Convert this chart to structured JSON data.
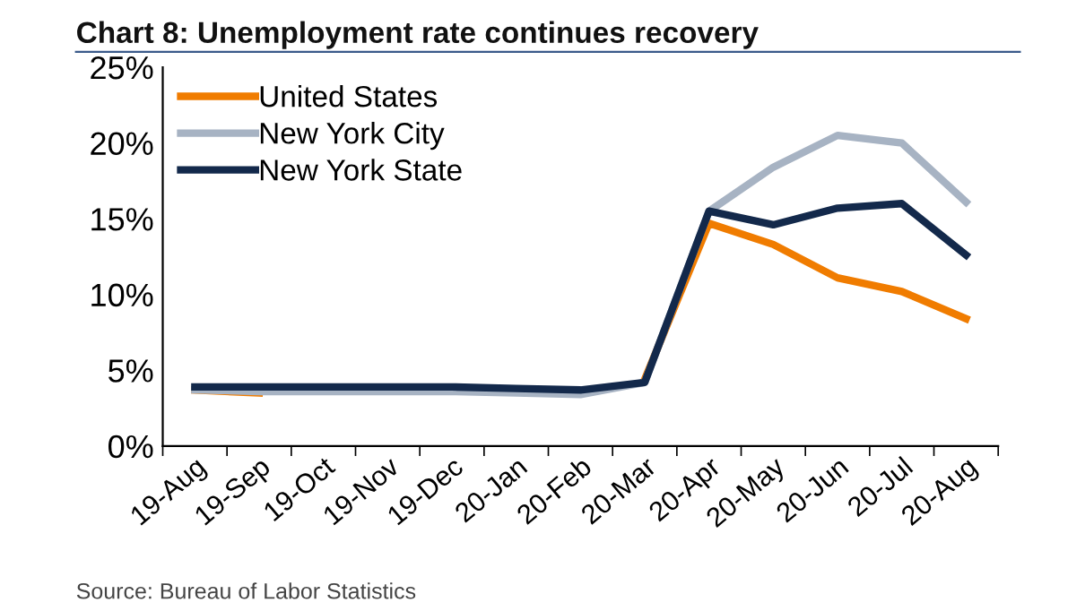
{
  "chart_data": {
    "type": "line",
    "title": "Chart 8: Unemployment rate continues recovery",
    "categories": [
      "19-Aug",
      "19-Sep",
      "19-Oct",
      "19-Nov",
      "19-Dec",
      "20-Jan",
      "20-Feb",
      "20-Mar",
      "20-Apr",
      "20-May",
      "20-Jun",
      "20-Jul",
      "20-Aug"
    ],
    "series": [
      {
        "name": "United States",
        "color": "#f07c00",
        "values": [
          3.7,
          3.5,
          null,
          null,
          null,
          null,
          null,
          4.4,
          14.7,
          13.3,
          11.1,
          10.2,
          8.4
        ]
      },
      {
        "name": "New York City",
        "color": "#a7b3c3",
        "values": [
          3.7,
          3.6,
          3.6,
          3.6,
          3.6,
          3.5,
          3.4,
          4.2,
          15.5,
          18.4,
          20.5,
          20.0,
          16.1
        ]
      },
      {
        "name": "New York State",
        "color": "#13294b",
        "values": [
          3.9,
          3.9,
          3.9,
          3.9,
          3.9,
          3.8,
          3.7,
          4.2,
          15.5,
          14.6,
          15.7,
          16.0,
          12.6
        ]
      }
    ],
    "ylim": [
      0,
      25
    ],
    "yticks": [
      {
        "value": 0,
        "label": "0%"
      },
      {
        "value": 5,
        "label": "5%"
      },
      {
        "value": 10,
        "label": "10%"
      },
      {
        "value": 15,
        "label": "15%"
      },
      {
        "value": 20,
        "label": "20%"
      },
      {
        "value": 25,
        "label": "25%"
      }
    ],
    "grid": false,
    "legend": "top left",
    "marker": "none",
    "line_style": "solid",
    "annotations": [
      "Source: Bureau of Labor Statistics"
    ]
  }
}
